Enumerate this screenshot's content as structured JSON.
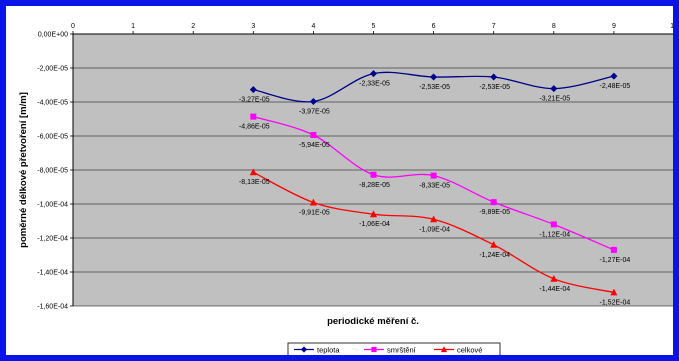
{
  "chart_data": {
    "type": "line",
    "title": "",
    "xlabel": "periodické měření č.",
    "ylabel": "poměrné délkové přetvoření [m/m]",
    "x": [
      3,
      4,
      5,
      6,
      7,
      8,
      9
    ],
    "xlim": [
      0,
      10
    ],
    "x_ticks": [
      "0",
      "1",
      "2",
      "3",
      "4",
      "5",
      "6",
      "7",
      "8",
      "9",
      "10"
    ],
    "ylim": [
      -0.00016,
      0
    ],
    "y_ticks": [
      {
        "value": 0,
        "label": "0,00E+00"
      },
      {
        "value": -2e-05,
        "label": "-2,00E-05"
      },
      {
        "value": -4e-05,
        "label": "-4,00E-05"
      },
      {
        "value": -6e-05,
        "label": "-6,00E-05"
      },
      {
        "value": -8e-05,
        "label": "-8,00E-05"
      },
      {
        "value": -0.0001,
        "label": "-1,00E-04"
      },
      {
        "value": -0.00012,
        "label": "-1,20E-04"
      },
      {
        "value": -0.00014,
        "label": "-1,40E-04"
      },
      {
        "value": -0.00016,
        "label": "-1,60E-04"
      }
    ],
    "grid": "horizontal",
    "plot_background": "#c0c0c0",
    "legend_position": "bottom-center",
    "series": [
      {
        "name": "teplota",
        "color": "#00008b",
        "marker": "diamond",
        "values": [
          -3.27e-05,
          -3.97e-05,
          -2.33e-05,
          -2.53e-05,
          -2.53e-05,
          -3.21e-05,
          -2.48e-05
        ],
        "labels": [
          "-3,27E-05",
          "-3,97E-05",
          "-2,33E-05",
          "-2,53E-05",
          "-2,53E-05",
          "-3,21E-05",
          "-2,48E-05"
        ]
      },
      {
        "name": "smrštění",
        "color": "#ff00ff",
        "marker": "square",
        "values": [
          -4.86e-05,
          -5.94e-05,
          -8.28e-05,
          -8.33e-05,
          -9.89e-05,
          -0.000112,
          -0.000127
        ],
        "labels": [
          "-4,86E-05",
          "-5,94E-05",
          "-8,28E-05",
          "-8,33E-05",
          "-9,89E-05",
          "-1,12E-04",
          "-1,27E-04"
        ]
      },
      {
        "name": "celkové",
        "color": "#ff0000",
        "marker": "triangle",
        "values": [
          -8.13e-05,
          -9.91e-05,
          -0.000106,
          -0.000109,
          -0.000124,
          -0.000144,
          -0.000152
        ],
        "labels": [
          "-8,13E-05",
          "-9,91E-05",
          "-1,06E-04",
          "-1,09E-04",
          "-1,24E-04",
          "-1,44E-04",
          "-1,52E-04"
        ]
      }
    ]
  }
}
